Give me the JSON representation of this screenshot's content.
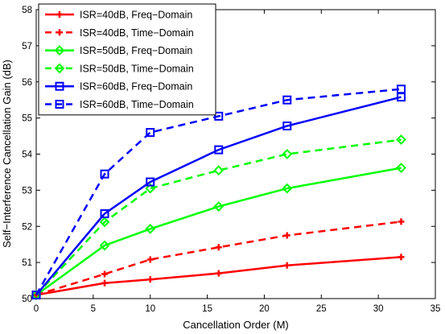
{
  "chart_data": {
    "type": "line",
    "xlabel": "Cancellation Order (M)",
    "ylabel": "Self−Interference Cancellation Gain (dB)",
    "xlim": [
      0,
      35
    ],
    "ylim": [
      50,
      58
    ],
    "xticks": [
      "0",
      "5",
      "10",
      "15",
      "20",
      "25",
      "30",
      "35"
    ],
    "yticks": [
      "50",
      "51",
      "52",
      "53",
      "54",
      "55",
      "56",
      "57",
      "58"
    ],
    "grid": false,
    "legend_position": "top-left",
    "series": [
      {
        "name": "ISR=40dB, Freq−Domain",
        "color": "#ff0000",
        "dash": "solid",
        "marker": "plus",
        "x": [
          0,
          6,
          10,
          16,
          22,
          32
        ],
        "y": [
          50.1,
          50.43,
          50.53,
          50.7,
          50.92,
          51.15
        ]
      },
      {
        "name": "ISR=40dB, Time−Domain",
        "color": "#ff0000",
        "dash": "dashed",
        "marker": "plus",
        "x": [
          0,
          6,
          10,
          16,
          22,
          32
        ],
        "y": [
          50.1,
          50.68,
          51.08,
          51.42,
          51.75,
          52.13
        ]
      },
      {
        "name": "ISR=50dB, Freq−Domain",
        "color": "#00ff00",
        "dash": "solid",
        "marker": "diamond",
        "x": [
          0,
          6,
          10,
          16,
          22,
          32
        ],
        "y": [
          50.1,
          51.47,
          51.93,
          52.55,
          53.05,
          53.62
        ]
      },
      {
        "name": "ISR=50dB, Time−Domain",
        "color": "#00ff00",
        "dash": "dashed",
        "marker": "diamond",
        "x": [
          0,
          6,
          10,
          16,
          22,
          32
        ],
        "y": [
          50.1,
          52.12,
          53.05,
          53.55,
          54.0,
          54.4
        ]
      },
      {
        "name": "ISR=60dB, Freq−Domain",
        "color": "#0000ff",
        "dash": "solid",
        "marker": "square",
        "x": [
          0,
          6,
          10,
          16,
          22,
          32
        ],
        "y": [
          50.1,
          52.35,
          53.23,
          54.12,
          54.78,
          55.58
        ]
      },
      {
        "name": "ISR=60dB, Time−Domain",
        "color": "#0000ff",
        "dash": "dashed",
        "marker": "square",
        "x": [
          0,
          6,
          10,
          16,
          22,
          32
        ],
        "y": [
          50.1,
          53.45,
          54.6,
          55.05,
          55.5,
          55.8
        ]
      }
    ]
  }
}
